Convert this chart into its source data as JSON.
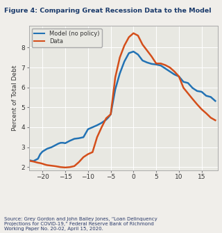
{
  "title": "Figure 4: Comparing Great Recession Data to the Model",
  "ylabel": "Percent of Total Debt",
  "source_text": "Source: Grey Gordon and John Bailey Jones, “Loan Delinquency\nProjections for COVID-19,” Federal Reserve Bank of Richmond\nWorking Paper No. 20-02, April 15, 2020.",
  "xlim": [
    -23,
    18.5
  ],
  "ylim": [
    1.85,
    9.1
  ],
  "yticks": [
    2,
    3,
    4,
    5,
    6,
    7,
    8
  ],
  "xticks": [
    -20,
    -15,
    -10,
    -5,
    0,
    5,
    10,
    15
  ],
  "model_color": "#2272B4",
  "data_color": "#D44E1A",
  "legend_labels": [
    "Model (no policy)",
    "Data"
  ],
  "model_x": [
    -23,
    -22,
    -21,
    -20.5,
    -20,
    -19.5,
    -19,
    -18,
    -17,
    -16.5,
    -16,
    -15.5,
    -15,
    -14,
    -13,
    -12,
    -11,
    -10,
    -9.5,
    -9,
    -8,
    -7,
    -6,
    -5.5,
    -5,
    -4,
    -3,
    -2,
    -1,
    0,
    1,
    2,
    3,
    4,
    5,
    6,
    7,
    8,
    9,
    10,
    11,
    12,
    13,
    14,
    15,
    16,
    17,
    18
  ],
  "model_y": [
    2.35,
    2.3,
    2.42,
    2.65,
    2.78,
    2.85,
    2.92,
    3.0,
    3.12,
    3.18,
    3.22,
    3.22,
    3.2,
    3.32,
    3.42,
    3.45,
    3.5,
    3.9,
    3.95,
    4.0,
    4.1,
    4.22,
    4.38,
    4.5,
    4.65,
    5.9,
    6.7,
    7.3,
    7.72,
    7.8,
    7.65,
    7.35,
    7.25,
    7.18,
    7.15,
    7.1,
    6.95,
    6.8,
    6.65,
    6.55,
    6.28,
    6.22,
    5.97,
    5.82,
    5.78,
    5.58,
    5.52,
    5.32
  ],
  "data_x": [
    -23,
    -22,
    -21,
    -20.5,
    -20,
    -19.5,
    -19,
    -18,
    -17,
    -16.5,
    -16,
    -15.5,
    -15,
    -14.5,
    -14,
    -13,
    -12,
    -11,
    -10,
    -9,
    -8,
    -7,
    -6,
    -5,
    -4,
    -3,
    -2,
    -1,
    0,
    1,
    2,
    3,
    4,
    5,
    6,
    7,
    8,
    9,
    10,
    11,
    12,
    13,
    14,
    15,
    16,
    17,
    18
  ],
  "data_y": [
    2.32,
    2.28,
    2.22,
    2.2,
    2.17,
    2.13,
    2.1,
    2.07,
    2.04,
    2.02,
    2.0,
    1.99,
    1.98,
    1.99,
    2.0,
    2.05,
    2.25,
    2.5,
    2.65,
    2.75,
    3.5,
    4.0,
    4.45,
    4.65,
    6.5,
    7.5,
    8.1,
    8.52,
    8.72,
    8.6,
    8.15,
    7.85,
    7.55,
    7.2,
    7.2,
    7.12,
    7.0,
    6.8,
    6.55,
    5.98,
    5.7,
    5.42,
    5.15,
    4.9,
    4.7,
    4.48,
    4.35
  ],
  "fig_bg": "#f0eeea",
  "plot_bg": "#e8e8e2",
  "title_color": "#1a3a6b",
  "source_color": "#2a3a6a",
  "header_color": "#c8dde8"
}
